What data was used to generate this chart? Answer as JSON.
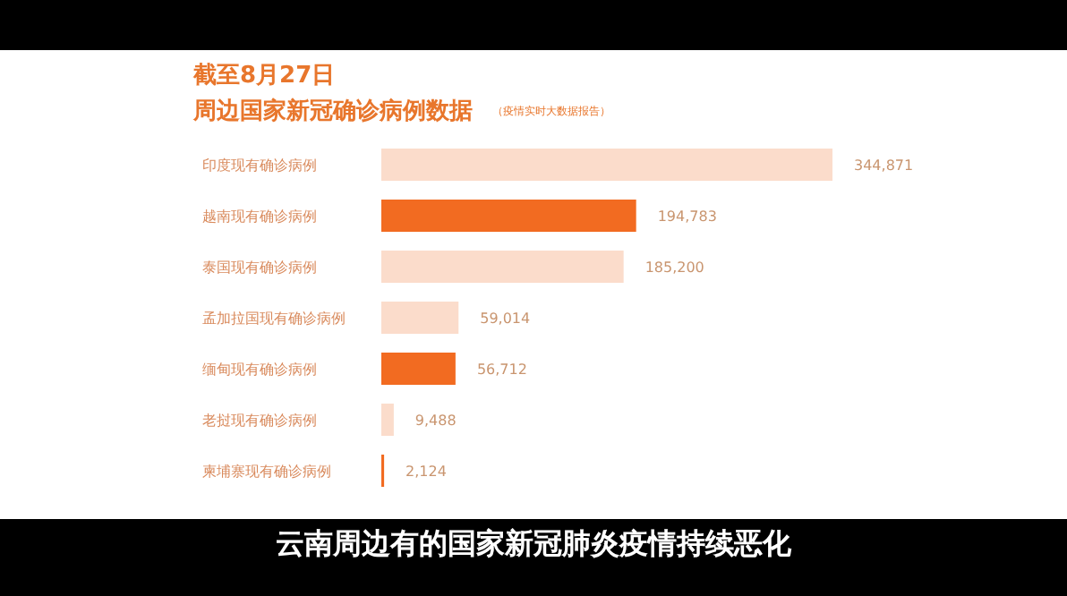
{
  "chart_data": {
    "type": "bar",
    "orientation": "horizontal",
    "title": "截至8月27日",
    "subtitle": "周边国家新冠确诊病例数据",
    "categories": [
      "印度现有确诊病例",
      "越南现有确诊病例",
      "泰国现有确诊病例",
      "孟加拉国现有确诊病例",
      "缅甸现有确诊病例",
      "老挝现有确诊病例",
      "柬埔寨现有确诊病例"
    ],
    "values": [
      344871,
      194783,
      185200,
      59014,
      56712,
      9488,
      2124
    ],
    "colors": [
      "#fbdccb",
      "#f26b21",
      "#fbdccb",
      "#fbdccb",
      "#f26b21",
      "#fbdccb",
      "#f26b21"
    ],
    "value_labels": [
      "344,871",
      "194,783",
      "185,200",
      "59,014",
      "56,712",
      "9,488",
      "2,124"
    ],
    "annotations": [
      "（疫情实时大数据报告）",
      "云南周边有的国家新冠肺炎疫情持续恶化"
    ]
  }
}
